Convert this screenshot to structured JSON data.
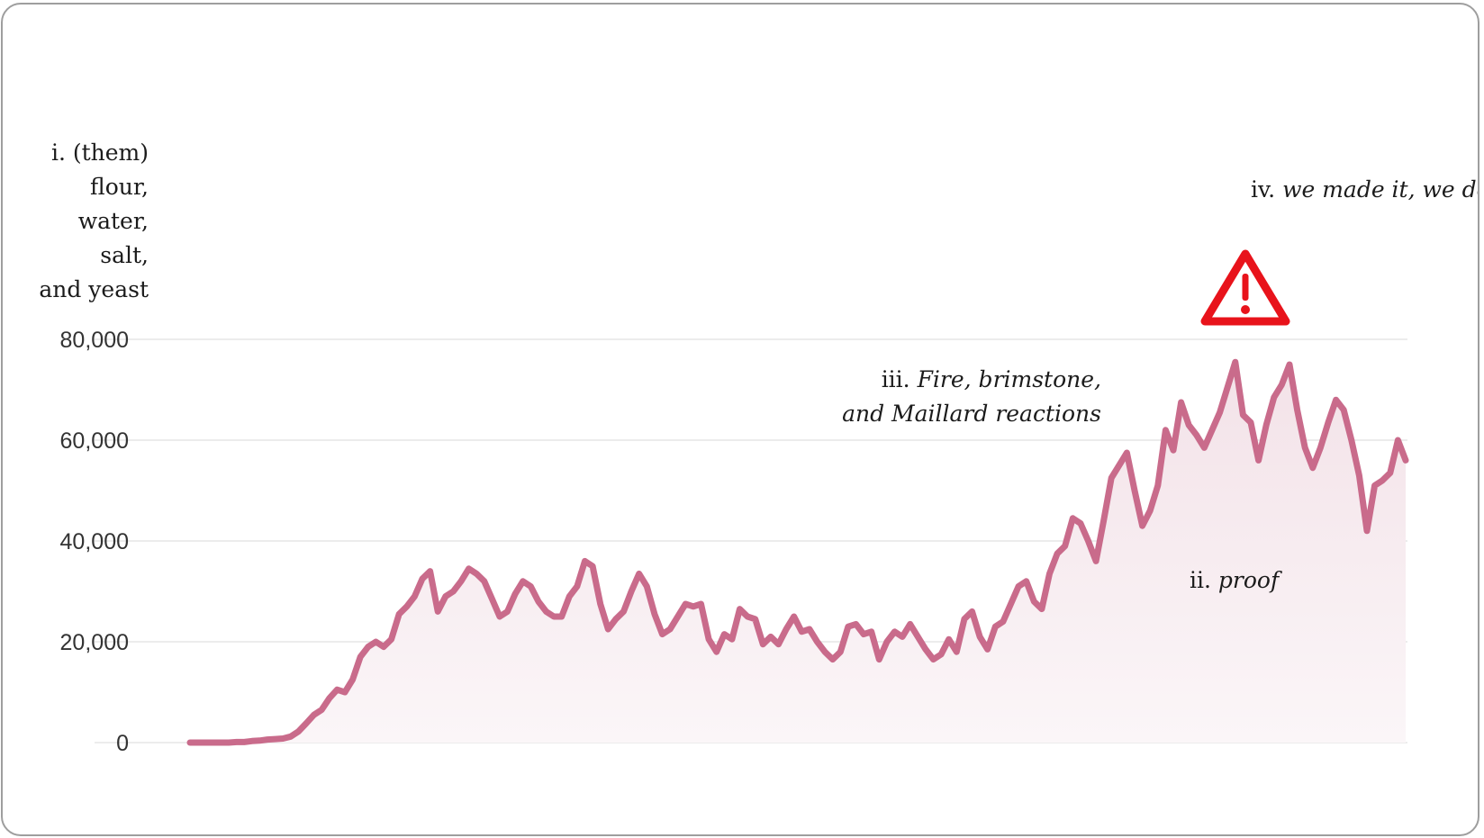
{
  "chart_data": {
    "type": "area",
    "title": "",
    "xlabel": "",
    "ylabel": "",
    "ylim": [
      0,
      80000
    ],
    "y_ticks": [
      "80,000",
      "60,000",
      "40,000",
      "20,000",
      "0"
    ],
    "grid": true,
    "legend": "none",
    "colors": {
      "line": "#c96b8b",
      "fill_top": "#f3e2e8",
      "fill_bottom": "#fbf6f8",
      "grid": "#ececec",
      "warning": "#e8131b"
    },
    "series": [
      {
        "values": [
          0,
          0,
          0,
          0,
          0,
          0,
          100,
          100,
          300,
          400,
          600,
          700,
          800,
          1200,
          2200,
          3800,
          5500,
          6500,
          8800,
          10500,
          10000,
          12500,
          17000,
          19000,
          20000,
          19000,
          20500,
          25500,
          27000,
          29000,
          32500,
          34000,
          26000,
          29000,
          30000,
          32000,
          34500,
          33500,
          32000,
          28500,
          25000,
          26000,
          29500,
          32000,
          31000,
          28000,
          26000,
          25000,
          25000,
          29000,
          31000,
          36000,
          35000,
          27500,
          22500,
          24500,
          26000,
          30000,
          33500,
          31000,
          25500,
          21500,
          22500,
          25000,
          27500,
          27000,
          27500,
          20500,
          18000,
          21500,
          20500,
          26500,
          25000,
          24500,
          19500,
          21000,
          19500,
          22500,
          25000,
          22000,
          22500,
          20000,
          18000,
          16500,
          18000,
          23000,
          23500,
          21500,
          22000,
          16500,
          20000,
          22000,
          21000,
          23500,
          21000,
          18500,
          16500,
          17500,
          20500,
          18000,
          24500,
          26000,
          21000,
          18500,
          23000,
          24000,
          27500,
          31000,
          32000,
          28000,
          26500,
          33500,
          37500,
          39000,
          44500,
          43500,
          40000,
          36000,
          44000,
          52500,
          55000,
          57500,
          50000,
          43000,
          46000,
          51000,
          62000,
          58000,
          67500,
          63000,
          61000,
          58500,
          62000,
          65500,
          70500,
          75500,
          65000,
          63500,
          56000,
          63000,
          68500,
          71000,
          75000,
          66000,
          58500,
          54500,
          58500,
          63500,
          68000,
          66000,
          60000,
          53000,
          42000,
          51000,
          52000,
          53500,
          60000,
          56000
        ]
      }
    ]
  },
  "annotations": {
    "i": [
      "i. (them)",
      "flour,",
      "water,",
      "salt,",
      "and yeast"
    ],
    "iii_label": "iii.",
    "iii_line1": "Fire, brimstone,",
    "iii_line2": "and Maillard reactions",
    "ii_label": "ii.",
    "ii_text": "proof",
    "iv_label": "iv.",
    "iv_text": "we made it, we de",
    "warning_icon": "warning-triangle-icon"
  }
}
